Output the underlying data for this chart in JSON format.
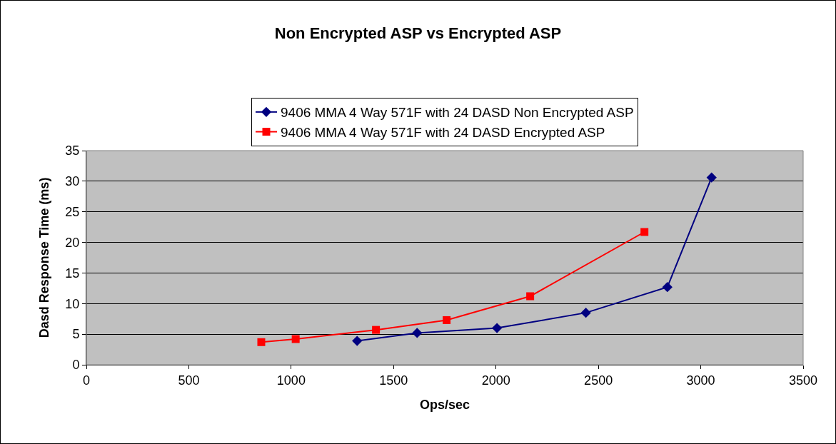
{
  "chart_data": {
    "type": "line",
    "title": "Non Encrypted ASP vs Encrypted ASP",
    "xlabel": "Ops/sec",
    "ylabel": "Dasd Response Time (ms)",
    "series": [
      {
        "name": "9406 MMA 4 Way 571F with 24 DASD Non Encrypted ASP",
        "color": "#000080",
        "marker": "diamond",
        "x": [
          1322,
          1615,
          2005,
          2439,
          2837,
          3053
        ],
        "values": [
          3.9,
          5.2,
          6.0,
          8.5,
          12.7,
          30.6
        ]
      },
      {
        "name": "9406 MMA 4 Way 571F with 24 DASD Encrypted ASP",
        "color": "#ff0000",
        "marker": "square",
        "x": [
          854,
          1022,
          1414,
          1759,
          2167,
          2725
        ],
        "values": [
          3.7,
          4.2,
          5.7,
          7.3,
          11.2,
          21.7
        ]
      }
    ],
    "xlim": [
      0,
      3500
    ],
    "xticks": [
      0,
      500,
      1000,
      1500,
      2000,
      2500,
      3000,
      3500
    ],
    "ylim": [
      0,
      35
    ],
    "yticks": [
      0,
      5,
      10,
      15,
      20,
      25,
      30,
      35
    ],
    "grid": "y",
    "legend": "top"
  }
}
